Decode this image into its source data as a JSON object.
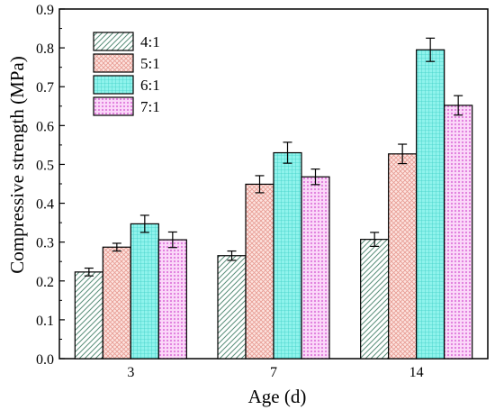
{
  "chart_data": {
    "type": "bar",
    "xlabel": "Age (d)",
    "ylabel": "Compressive strength (MPa)",
    "categories": [
      "3",
      "7",
      "14"
    ],
    "ylim": [
      0.0,
      0.9
    ],
    "yticks": [
      "0.0",
      "0.1",
      "0.2",
      "0.3",
      "0.4",
      "0.5",
      "0.6",
      "0.7",
      "0.8",
      "0.9"
    ],
    "legend_position": "top-left",
    "grid": false,
    "series": [
      {
        "name": "4:1",
        "values": [
          0.223,
          0.265,
          0.307
        ],
        "errors": [
          0.01,
          0.012,
          0.018
        ],
        "color": "#b7d9c8",
        "pattern": "diagonal-hatch"
      },
      {
        "name": "5:1",
        "values": [
          0.287,
          0.449,
          0.527
        ],
        "errors": [
          0.01,
          0.022,
          0.025
        ],
        "color": "#f7c7c0",
        "pattern": "crosshatch"
      },
      {
        "name": "6:1",
        "values": [
          0.347,
          0.53,
          0.795
        ],
        "errors": [
          0.022,
          0.027,
          0.03
        ],
        "color": "#5ee8e0",
        "pattern": "fine-grid"
      },
      {
        "name": "7:1",
        "values": [
          0.306,
          0.468,
          0.652
        ],
        "errors": [
          0.02,
          0.02,
          0.025
        ],
        "color": "#f2a3ef",
        "pattern": "dots"
      }
    ]
  }
}
